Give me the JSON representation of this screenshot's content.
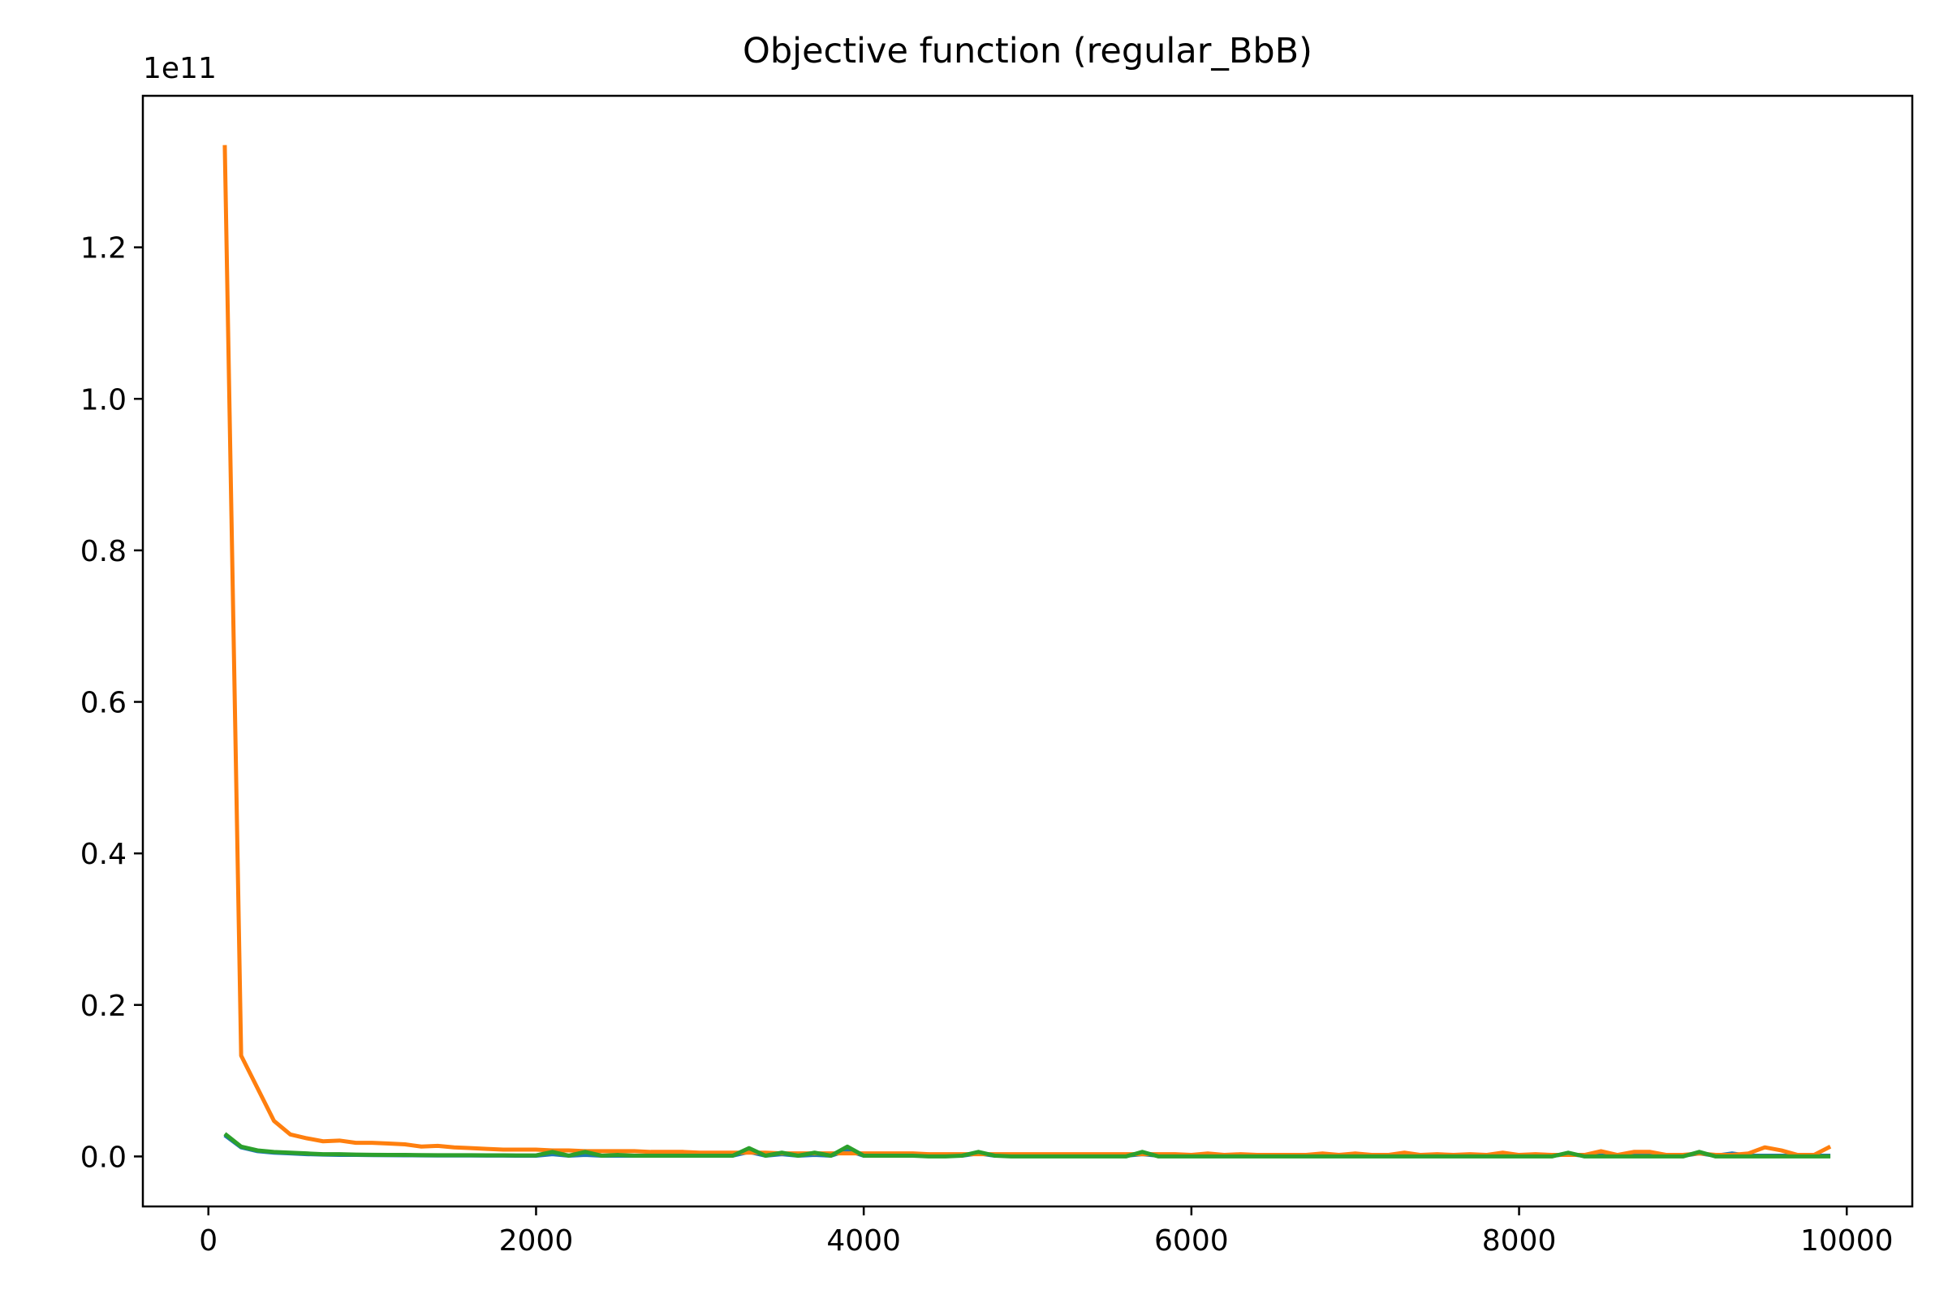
{
  "chart_data": {
    "type": "line",
    "title": "Objective function (regular_BbB)",
    "xlabel": "",
    "ylabel": "",
    "y_offset_label": "1e11",
    "xlim": [
      -400,
      10400
    ],
    "ylim": [
      -0.066,
      1.4
    ],
    "x_ticks": [
      0,
      2000,
      4000,
      6000,
      8000,
      10000
    ],
    "x_tick_labels": [
      "0",
      "2000",
      "4000",
      "6000",
      "8000",
      "10000"
    ],
    "y_ticks": [
      0.0,
      0.2,
      0.4,
      0.6,
      0.8,
      1.0,
      1.2
    ],
    "y_tick_labels": [
      "0.0",
      "0.2",
      "0.4",
      "0.6",
      "0.8",
      "1.0",
      "1.2"
    ],
    "grid": false,
    "legend": "none",
    "x": [
      100,
      200,
      300,
      400,
      500,
      600,
      700,
      800,
      900,
      1000,
      1100,
      1200,
      1300,
      1400,
      1500,
      1600,
      1700,
      1800,
      1900,
      2000,
      2100,
      2200,
      2300,
      2400,
      2500,
      2600,
      2700,
      2800,
      2900,
      3000,
      3100,
      3200,
      3300,
      3400,
      3500,
      3600,
      3700,
      3800,
      3900,
      4000,
      4100,
      4200,
      4300,
      4400,
      4500,
      4600,
      4700,
      4800,
      4900,
      5000,
      5100,
      5200,
      5300,
      5400,
      5500,
      5600,
      5700,
      5800,
      5900,
      6000,
      6100,
      6200,
      6300,
      6400,
      6500,
      6600,
      6700,
      6800,
      6900,
      7000,
      7100,
      7200,
      7300,
      7400,
      7500,
      7600,
      7700,
      7800,
      7900,
      8000,
      8100,
      8200,
      8300,
      8400,
      8500,
      8600,
      8700,
      8800,
      8900,
      9000,
      9100,
      9200,
      9300,
      9400,
      9500,
      9600,
      9700,
      9800,
      9900
    ],
    "series": [
      {
        "color": "#1f77b4",
        "values": [
          0.028,
          0.012,
          0.007,
          0.005,
          0.004,
          0.003,
          0.0025,
          0.002,
          0.002,
          0.0018,
          0.0016,
          0.0015,
          0.0014,
          0.0013,
          0.0012,
          0.0012,
          0.0011,
          0.0011,
          0.001,
          0.001,
          0.003,
          0.001,
          0.002,
          0.001,
          0.001,
          0.001,
          0.001,
          0.001,
          0.001,
          0.001,
          0.001,
          0.001,
          0.006,
          0.001,
          0.003,
          0.001,
          0.002,
          0.001,
          0.008,
          0.001,
          0.001,
          0.001,
          0.001,
          0.001,
          0.001,
          0.001,
          0.004,
          0.001,
          0.001,
          0.001,
          0.001,
          0.001,
          0.001,
          0.001,
          0.001,
          0.001,
          0.003,
          0.001,
          0.001,
          0.001,
          0.001,
          0.001,
          0.001,
          0.001,
          0.001,
          0.001,
          0.001,
          0.001,
          0.001,
          0.001,
          0.001,
          0.001,
          0.001,
          0.001,
          0.001,
          0.001,
          0.001,
          0.001,
          0.001,
          0.001,
          0.001,
          0.001,
          0.003,
          0.001,
          0.001,
          0.001,
          0.001,
          0.001,
          0.001,
          0.001,
          0.004,
          0.001,
          0.004,
          0.001,
          0.001,
          0.001,
          0.001,
          0.001,
          0.001
        ]
      },
      {
        "color": "#ff7f0e",
        "values": [
          1.335,
          0.133,
          0.09,
          0.047,
          0.029,
          0.024,
          0.02,
          0.021,
          0.018,
          0.018,
          0.017,
          0.016,
          0.013,
          0.014,
          0.012,
          0.011,
          0.01,
          0.009,
          0.009,
          0.009,
          0.008,
          0.008,
          0.007,
          0.007,
          0.007,
          0.007,
          0.006,
          0.006,
          0.006,
          0.005,
          0.005,
          0.005,
          0.005,
          0.005,
          0.004,
          0.004,
          0.004,
          0.004,
          0.004,
          0.004,
          0.004,
          0.004,
          0.004,
          0.003,
          0.003,
          0.003,
          0.003,
          0.003,
          0.003,
          0.003,
          0.003,
          0.003,
          0.003,
          0.003,
          0.003,
          0.003,
          0.003,
          0.003,
          0.003,
          0.002,
          0.004,
          0.002,
          0.003,
          0.002,
          0.002,
          0.002,
          0.002,
          0.004,
          0.002,
          0.004,
          0.002,
          0.002,
          0.005,
          0.002,
          0.003,
          0.002,
          0.003,
          0.002,
          0.005,
          0.002,
          0.003,
          0.002,
          0.002,
          0.002,
          0.007,
          0.002,
          0.006,
          0.006,
          0.002,
          0.002,
          0.004,
          0.002,
          0.002,
          0.004,
          0.012,
          0.008,
          0.002,
          0.002,
          0.013
        ]
      },
      {
        "color": "#2ca02c",
        "values": [
          0.03,
          0.013,
          0.008,
          0.006,
          0.005,
          0.004,
          0.003,
          0.003,
          0.0025,
          0.0022,
          0.002,
          0.002,
          0.0018,
          0.0017,
          0.0016,
          0.0016,
          0.0015,
          0.0015,
          0.0014,
          0.0014,
          0.006,
          0.001,
          0.006,
          0.001,
          0.002,
          0.001,
          0.001,
          0.001,
          0.001,
          0.001,
          0.001,
          0.001,
          0.011,
          0.001,
          0.005,
          0.001,
          0.005,
          0.001,
          0.013,
          0.001,
          0.001,
          0.001,
          0.001,
          0.0,
          0.0,
          0.001,
          0.006,
          0.001,
          0.0,
          0.0,
          0.0,
          0.0,
          0.0,
          0.0,
          0.0,
          0.0,
          0.006,
          0.0,
          0.0,
          0.0,
          0.0,
          0.0,
          0.0,
          0.0,
          0.0,
          0.0,
          0.0,
          0.0,
          0.0,
          0.0,
          0.0,
          0.0,
          0.0,
          0.0,
          0.0,
          0.0,
          0.0,
          0.0,
          0.0,
          0.0,
          0.0,
          0.0,
          0.005,
          0.0,
          0.0,
          0.0,
          0.0,
          0.0,
          0.0,
          0.0,
          0.006,
          0.0,
          0.0,
          0.0,
          0.0,
          0.0,
          0.0,
          0.0,
          0.0
        ]
      }
    ]
  }
}
